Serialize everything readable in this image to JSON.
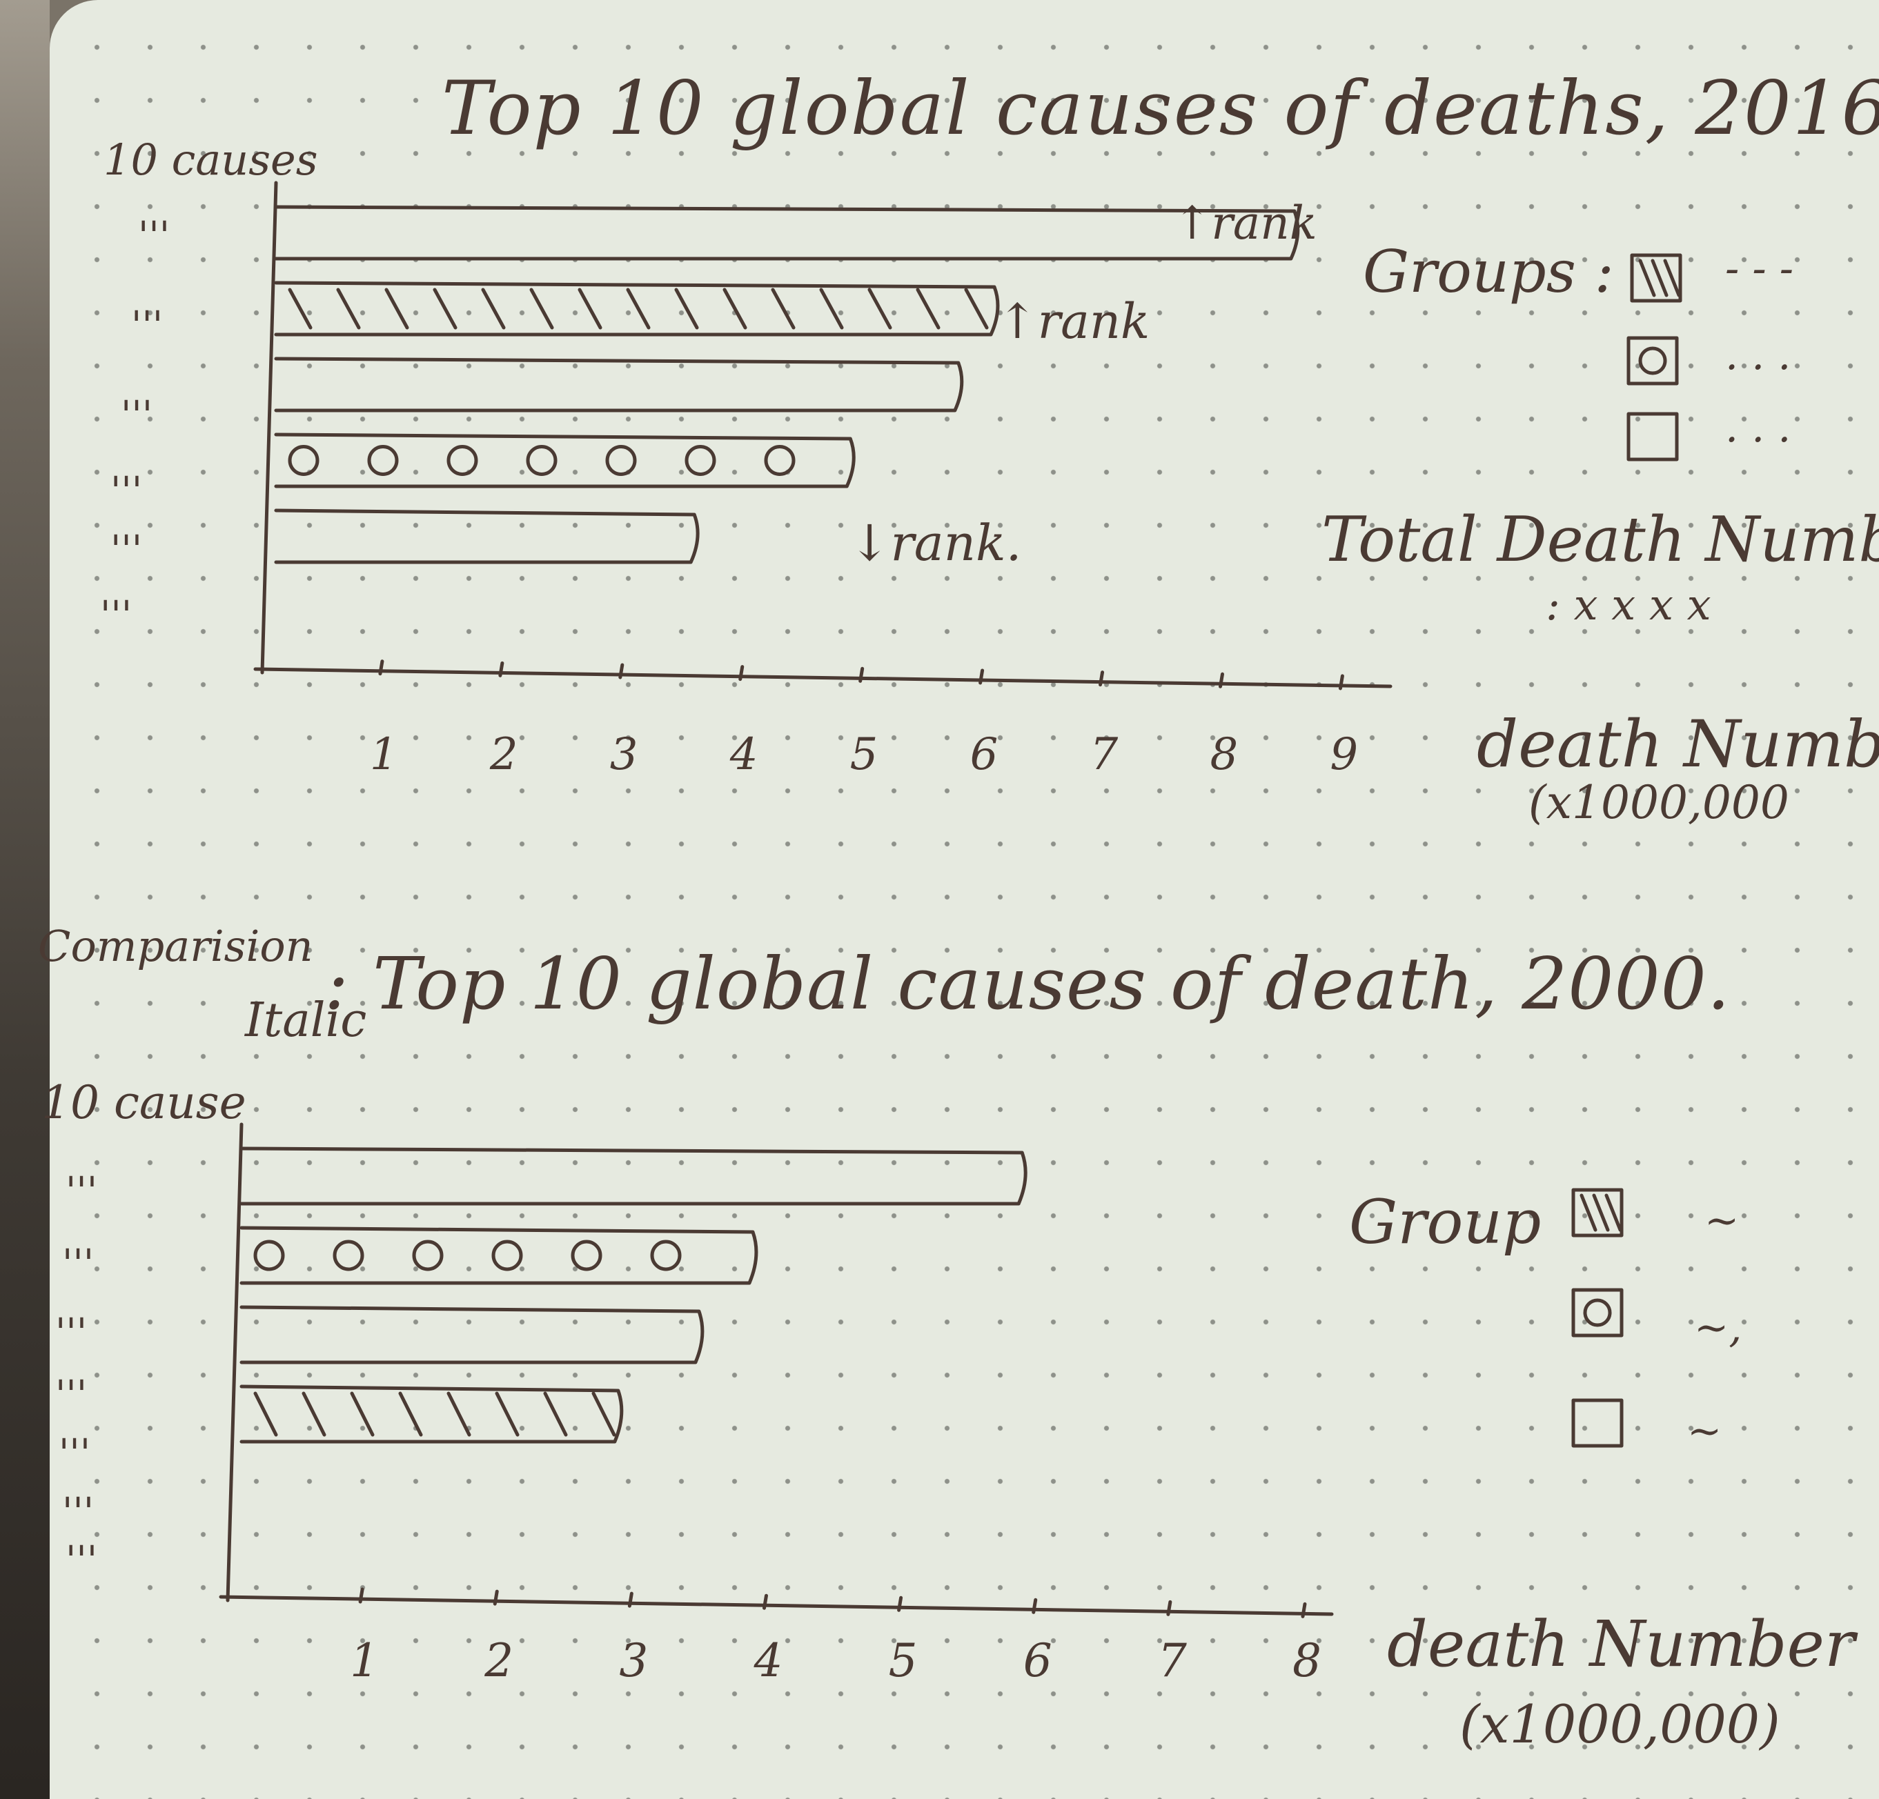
{
  "chart_2016": {
    "title": "Top 10 global causes of deaths, 2016.",
    "y_label": "10 causes",
    "row_marks": [
      "'''",
      "'''",
      "'''",
      "'''",
      "'''",
      "'''"
    ],
    "annotations": [
      "↑rank",
      "↑rank",
      "↓rank."
    ],
    "x_label": "death Numb",
    "x_unit": "(x1000,000",
    "legend_title": "Groups :",
    "legend_items": [
      "- - -",
      ". . .",
      ". . ."
    ],
    "total_label": "Total Death Numb",
    "total_value": ": x x x x"
  },
  "chart_2000": {
    "header_note": "Comparision",
    "header_sub": "Italic",
    "title": ": Top 10 global causes of death, 2000.",
    "y_label": "10 cause",
    "row_marks": [
      "'''",
      "'''",
      "'''",
      "'''",
      "'''",
      "'''",
      "'''"
    ],
    "x_label": "death Number",
    "x_unit": "(x1000,000)",
    "legend_title": "Group",
    "legend_items": [
      "~",
      "~,",
      "~"
    ]
  },
  "chart_data": [
    {
      "type": "bar",
      "title": "Top 10 global causes of deaths, 2016.",
      "xlabel": "death Numb (x1000,000",
      "ylabel": "10 causes",
      "x_ticks": [
        1,
        2,
        3,
        4,
        5,
        6,
        7,
        8,
        9
      ],
      "xlim": [
        0,
        9.4
      ],
      "orientation": "horizontal",
      "values": [
        8.6,
        6.1,
        5.8,
        4.9,
        3.6
      ],
      "fills": [
        "plain",
        "hatch",
        "plain",
        "circles",
        "plain"
      ]
    },
    {
      "type": "bar",
      "title": "Top 10 global causes of death, 2000",
      "xlabel": "death Number (x1000,000)",
      "ylabel": "10 cause",
      "x_ticks": [
        1,
        2,
        3,
        4,
        5,
        6,
        7,
        8
      ],
      "xlim": [
        0,
        8.2
      ],
      "orientation": "horizontal",
      "values": [
        5.9,
        3.9,
        3.5,
        2.9
      ],
      "fills": [
        "plain",
        "circles",
        "plain",
        "hatch"
      ]
    }
  ],
  "colors": {
    "ink": "#4a3a33",
    "paper": "#e6eae0",
    "dot": "#8e918a"
  }
}
